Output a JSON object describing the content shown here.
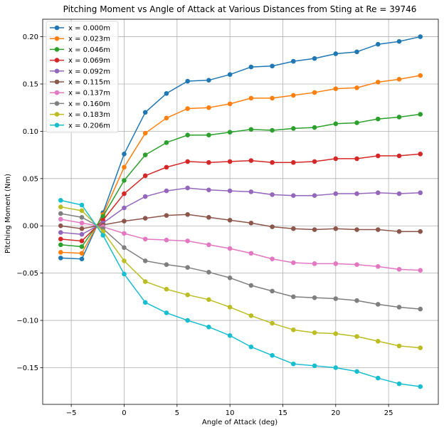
{
  "chart_data": {
    "type": "line",
    "title": "Pitching Moment vs Angle of Attack at Various Distances from Sting at Re = 39746",
    "xlabel": "Angle of Attack (deg)",
    "ylabel": "Pitching Moment (Nm)",
    "xlim": [
      -7.7,
      29.7
    ],
    "ylim": [
      -0.1888,
      0.2185
    ],
    "xticks": [
      -5,
      0,
      5,
      10,
      15,
      20,
      25
    ],
    "yticks": [
      -0.15,
      -0.1,
      -0.05,
      0.0,
      0.05,
      0.1,
      0.15,
      0.2
    ],
    "xtick_labels": [
      "−5",
      "0",
      "5",
      "10",
      "15",
      "20",
      "25"
    ],
    "ytick_labels": [
      "−0.15",
      "−0.10",
      "−0.05",
      "0.00",
      "0.05",
      "0.10",
      "0.15",
      "0.20"
    ],
    "grid": true,
    "legend_position": "top-left",
    "x": [
      -6,
      -4,
      -2,
      0,
      2,
      4,
      6,
      8,
      10,
      12,
      14,
      16,
      18,
      20,
      22,
      24,
      26,
      28
    ],
    "series": [
      {
        "name": "x = 0.000m",
        "color": "#1f77b4",
        "values": [
          -0.034,
          -0.035,
          0.014,
          0.076,
          0.12,
          0.14,
          0.153,
          0.154,
          0.16,
          0.168,
          0.169,
          0.174,
          0.177,
          0.182,
          0.184,
          0.192,
          0.195,
          0.2
        ]
      },
      {
        "name": "x = 0.023m",
        "color": "#ff7f0e",
        "values": [
          -0.028,
          -0.029,
          0.012,
          0.062,
          0.098,
          0.114,
          0.124,
          0.125,
          0.129,
          0.135,
          0.135,
          0.138,
          0.141,
          0.145,
          0.146,
          0.152,
          0.155,
          0.159
        ]
      },
      {
        "name": "x = 0.046m",
        "color": "#2ca02c",
        "values": [
          -0.02,
          -0.022,
          0.01,
          0.048,
          0.075,
          0.088,
          0.096,
          0.096,
          0.099,
          0.102,
          0.101,
          0.103,
          0.104,
          0.108,
          0.109,
          0.113,
          0.115,
          0.118
        ]
      },
      {
        "name": "x = 0.069m",
        "color": "#d62728",
        "values": [
          -0.014,
          -0.016,
          0.006,
          0.034,
          0.053,
          0.062,
          0.068,
          0.067,
          0.068,
          0.069,
          0.067,
          0.067,
          0.068,
          0.071,
          0.071,
          0.074,
          0.074,
          0.076
        ]
      },
      {
        "name": "x = 0.092m",
        "color": "#9467bd",
        "values": [
          -0.007,
          -0.009,
          0.003,
          0.019,
          0.031,
          0.037,
          0.04,
          0.038,
          0.037,
          0.036,
          0.033,
          0.032,
          0.032,
          0.034,
          0.034,
          0.035,
          0.034,
          0.035
        ]
      },
      {
        "name": "x = 0.115m",
        "color": "#8c564b",
        "values": [
          0.0,
          -0.003,
          0.001,
          0.005,
          0.008,
          0.011,
          0.012,
          0.009,
          0.006,
          0.003,
          -0.001,
          -0.003,
          -0.004,
          -0.003,
          -0.004,
          -0.004,
          -0.006,
          -0.006
        ]
      },
      {
        "name": "x = 0.137m",
        "color": "#e377c2",
        "values": [
          0.007,
          0.003,
          -0.001,
          -0.008,
          -0.014,
          -0.015,
          -0.016,
          -0.02,
          -0.024,
          -0.029,
          -0.035,
          -0.039,
          -0.04,
          -0.04,
          -0.041,
          -0.043,
          -0.046,
          -0.047
        ]
      },
      {
        "name": "x = 0.160m",
        "color": "#7f7f7f",
        "values": [
          0.013,
          0.009,
          -0.003,
          -0.023,
          -0.037,
          -0.041,
          -0.044,
          -0.049,
          -0.055,
          -0.063,
          -0.069,
          -0.075,
          -0.076,
          -0.077,
          -0.079,
          -0.083,
          -0.086,
          -0.088
        ]
      },
      {
        "name": "x = 0.183m",
        "color": "#bcbd22",
        "values": [
          0.02,
          0.016,
          -0.006,
          -0.037,
          -0.059,
          -0.067,
          -0.073,
          -0.078,
          -0.086,
          -0.095,
          -0.103,
          -0.11,
          -0.113,
          -0.114,
          -0.117,
          -0.122,
          -0.127,
          -0.129
        ]
      },
      {
        "name": "x = 0.206m",
        "color": "#17becf",
        "values": [
          0.027,
          0.022,
          -0.01,
          -0.051,
          -0.081,
          -0.092,
          -0.1,
          -0.107,
          -0.116,
          -0.128,
          -0.137,
          -0.146,
          -0.148,
          -0.15,
          -0.154,
          -0.161,
          -0.167,
          -0.17
        ]
      }
    ]
  }
}
